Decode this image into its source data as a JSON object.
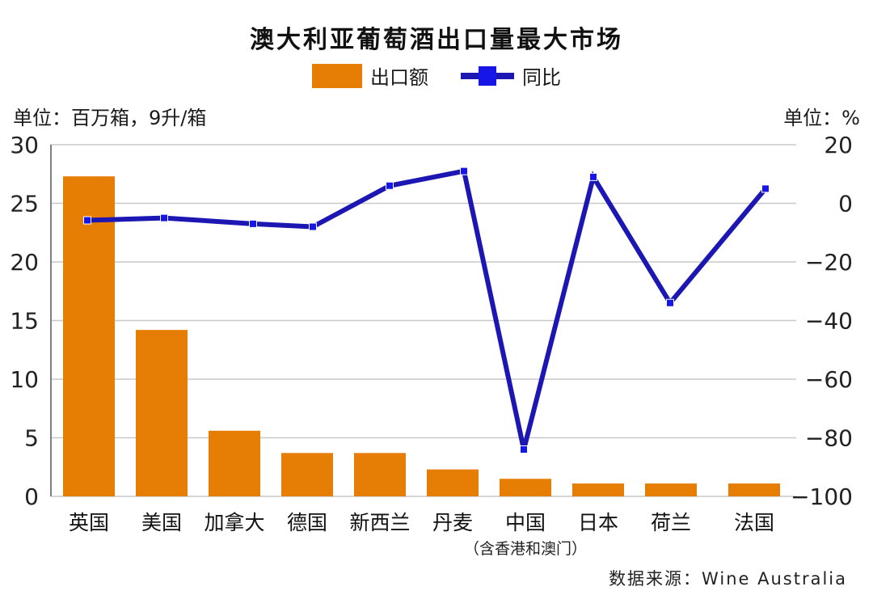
{
  "title": "澳大利亚葡萄酒出口量最大市场",
  "legend": {
    "bar_label": "出口额",
    "line_label": "同比"
  },
  "units": {
    "left": "单位：百万箱，9升/箱",
    "right": "单位：%"
  },
  "source": "数据来源：Wine Australia",
  "colors": {
    "bar": "#e67e06",
    "line": "#1c17b3",
    "marker": "#1616e6",
    "grid": "#c8c8c8",
    "axis": "#555555"
  },
  "chart_data": {
    "type": "bar+line",
    "title": "澳大利亚葡萄酒出口量最大市场",
    "categories": [
      "英国",
      "美国",
      "加拿大",
      "德国",
      "新西兰",
      "丹麦",
      "中国",
      "日本",
      "荷兰",
      "法国"
    ],
    "category_notes": {
      "中国": "（含香港和澳门）"
    },
    "series": [
      {
        "name": "出口额",
        "type": "bar",
        "axis": "left",
        "values": [
          27.3,
          14.2,
          5.6,
          3.7,
          3.7,
          2.3,
          1.5,
          1.1,
          1.1,
          1.1
        ]
      },
      {
        "name": "同比",
        "type": "line",
        "axis": "right",
        "values": [
          -5.8,
          -5,
          -7,
          -8,
          6,
          11,
          -84,
          9,
          -34,
          5
        ]
      }
    ],
    "ylabel": "单位：百万箱，9升/箱",
    "y2label": "单位：%",
    "ylim": [
      0,
      30
    ],
    "yticks": [
      0,
      5,
      10,
      15,
      20,
      25,
      30
    ],
    "y2lim": [
      -100,
      20
    ],
    "y2ticks": [
      -100,
      -80,
      -60,
      -40,
      -20,
      0,
      20
    ],
    "grid": true,
    "legend_position": "top-center"
  }
}
